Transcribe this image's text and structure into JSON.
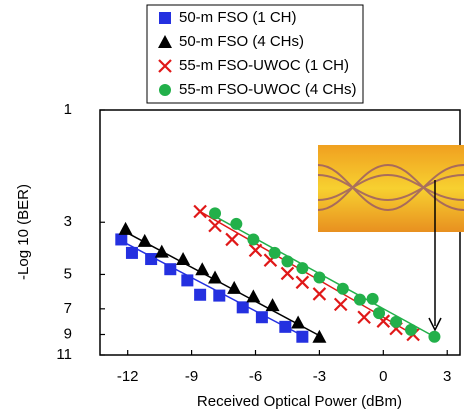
{
  "chart_data": {
    "type": "scatter",
    "xlabel": "Received  Optical  Power  (dBm)",
    "ylabel": "-Log 10 (BER)",
    "xlim": [
      -13.3,
      3.6
    ],
    "xticks": [
      -12,
      -9,
      -6,
      -3,
      0,
      3
    ],
    "ylim": [
      1,
      11
    ],
    "yticks": [
      1,
      3,
      5,
      7,
      9,
      11
    ],
    "yscale": "log",
    "yreversed": true,
    "legend": "top-center",
    "series": [
      {
        "name": "50-m FSO (1 CH)",
        "color": "#2430e0",
        "marker": "square",
        "x": [
          -12.3,
          -11.8,
          -10.9,
          -10.0,
          -9.2,
          -8.6,
          -7.7,
          -6.6,
          -5.7,
          -4.6,
          -3.8
        ],
        "values": [
          3.55,
          4.05,
          4.3,
          4.75,
          5.3,
          6.1,
          6.15,
          6.9,
          7.6,
          8.35,
          9.2
        ],
        "fit": {
          "x": [
            -12.3,
            -3.8
          ],
          "values": [
            3.6,
            9.1
          ]
        }
      },
      {
        "name": "50-m FSO (4 CHs)",
        "color": "#000000",
        "marker": "triangle",
        "x": [
          -12.1,
          -11.2,
          -10.4,
          -9.4,
          -8.5,
          -7.9,
          -7.0,
          -6.1,
          -5.2,
          -4.0,
          -3.0
        ],
        "values": [
          3.2,
          3.6,
          4.0,
          4.3,
          4.75,
          5.15,
          5.7,
          6.2,
          6.75,
          8.0,
          9.2
        ],
        "fit": {
          "x": [
            -12.1,
            -3.0
          ],
          "values": [
            3.3,
            9.1
          ]
        }
      },
      {
        "name": "55-m FSO-UWOC (1 CH)",
        "color": "#e01818",
        "marker": "cross",
        "x": [
          -8.6,
          -7.9,
          -7.1,
          -6.0,
          -5.3,
          -4.5,
          -3.8,
          -3.0,
          -2.0,
          -0.9,
          0.0,
          0.6,
          1.4
        ],
        "values": [
          2.7,
          3.1,
          3.55,
          3.95,
          4.35,
          4.95,
          5.4,
          6.05,
          6.7,
          7.6,
          7.9,
          8.5,
          9.0
        ],
        "fit": {
          "x": [
            -8.6,
            1.5
          ],
          "values": [
            2.7,
            9.1
          ]
        }
      },
      {
        "name": "55-m FSO-UWOC (4 CHs)",
        "color": "#22b04a",
        "marker": "circle",
        "x": [
          -7.9,
          -6.9,
          -6.1,
          -5.1,
          -4.5,
          -3.8,
          -3.0,
          -1.9,
          -1.1,
          -0.5,
          -0.2,
          0.6,
          1.3,
          2.4
        ],
        "values": [
          2.75,
          3.05,
          3.55,
          4.05,
          4.4,
          4.7,
          5.15,
          5.75,
          6.4,
          6.35,
          7.3,
          7.95,
          8.6,
          9.2
        ],
        "fit": {
          "x": [
            -8.0,
            2.4
          ],
          "values": [
            2.8,
            9.2
          ]
        }
      }
    ]
  }
}
